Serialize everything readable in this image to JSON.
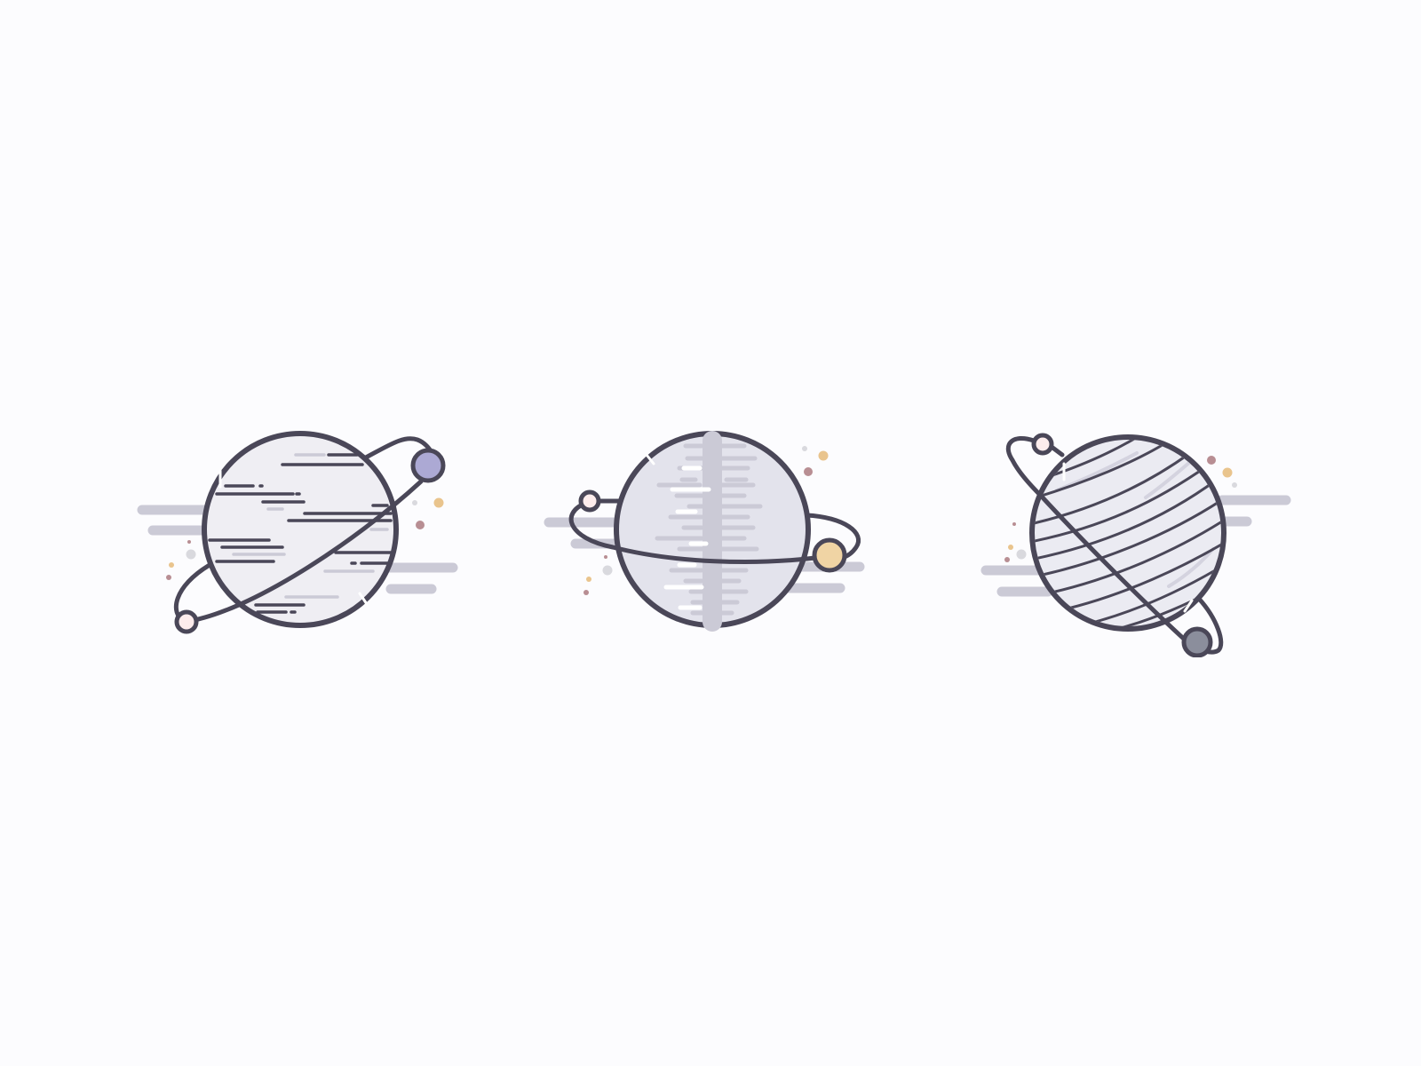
{
  "canvas": {
    "background": "#fcfcfe"
  },
  "palette": {
    "outline": "#4a4758",
    "planet_fill_light": "#efeef3",
    "planet_fill_mid": "#e3e3ec",
    "cloud": "#cbcad6",
    "moon_purple": "#aca9d4",
    "moon_pink": "#fdecec",
    "moon_gold": "#f0d4a4",
    "moon_grey": "#8b8e9c",
    "dot_gold": "#e9c48d",
    "dot_mauve": "#b88e93",
    "dot_grey": "#d9d9de",
    "highlight": "#ffffff"
  },
  "planets": [
    {
      "name": "planet-with-horizontal-streaks",
      "moons": [
        "purple",
        "pink"
      ]
    },
    {
      "name": "planet-with-vertical-band",
      "moons": [
        "pink",
        "gold"
      ]
    },
    {
      "name": "planet-with-diagonal-stripes",
      "moons": [
        "pink",
        "grey"
      ]
    }
  ]
}
